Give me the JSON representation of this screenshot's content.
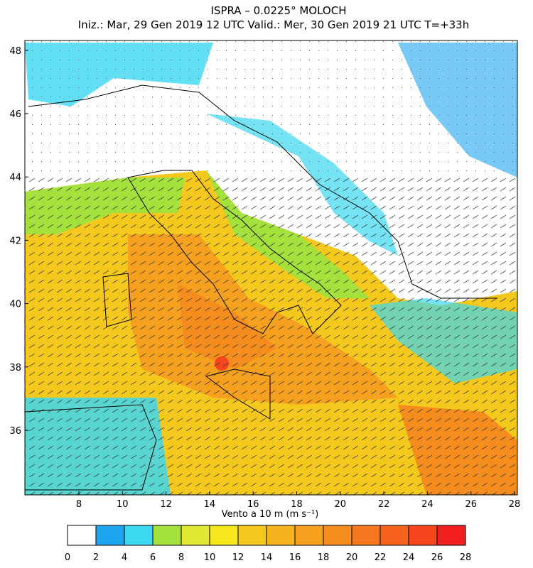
{
  "header": {
    "title": "ISPRA – 0.0225° MOLOCH",
    "subtitle": "Iniz.: Mar, 29 Gen 2019   12 UTC   Valid.: Mer, 30 Gen 2019   21 UTC   T=+33h"
  },
  "map": {
    "lon_range": [
      5.52,
      28.13
    ],
    "lat_range": [
      33.96,
      48.31
    ],
    "lon_ticks": [
      8,
      10,
      12,
      14,
      16,
      18,
      20,
      22,
      24,
      26,
      28
    ],
    "lat_ticks": [
      36,
      38,
      40,
      42,
      44,
      46,
      48
    ]
  },
  "colorbar": {
    "label": "Vento a 10 m (m s⁻¹)",
    "bounds": [
      0,
      2,
      4,
      6,
      8,
      10,
      12,
      14,
      16,
      18,
      20,
      22,
      24,
      26,
      28
    ],
    "colors": [
      "#ffffff",
      "#1ea5f0",
      "#3cd7f0",
      "#a5e13c",
      "#e1e632",
      "#f5e61e",
      "#f5c81e",
      "#f5b41e",
      "#f5a01e",
      "#f58c1e",
      "#f5781e",
      "#f5641e",
      "#f5461e",
      "#f01e1e"
    ]
  }
}
